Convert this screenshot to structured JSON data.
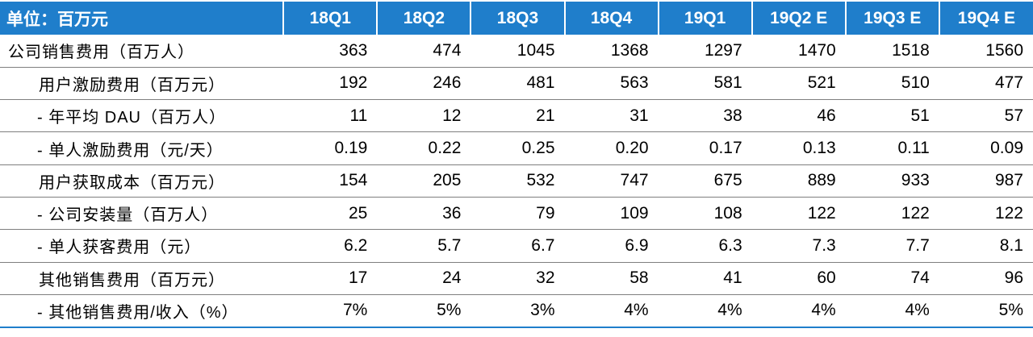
{
  "header": [
    "单位：百万元",
    "18Q1",
    "18Q2",
    "18Q3",
    "18Q4",
    "19Q1",
    "19Q2 E",
    "19Q3 E",
    "19Q4 E"
  ],
  "rows": [
    {
      "label": "公司销售费用（百万人）",
      "level": 0,
      "values": [
        "363",
        "474",
        "1045",
        "1368",
        "1297",
        "1470",
        "1518",
        "1560"
      ]
    },
    {
      "label": "用户激励费用（百万元）",
      "level": 1,
      "values": [
        "192",
        "246",
        "481",
        "563",
        "581",
        "521",
        "510",
        "477"
      ]
    },
    {
      "label": "- 年平均 DAU（百万人）",
      "level": 2,
      "values": [
        "11",
        "12",
        "21",
        "31",
        "38",
        "46",
        "51",
        "57"
      ]
    },
    {
      "label": "- 单人激励费用（元/天）",
      "level": 2,
      "values": [
        "0.19",
        "0.22",
        "0.25",
        "0.20",
        "0.17",
        "0.13",
        "0.11",
        "0.09"
      ]
    },
    {
      "label": "用户获取成本（百万元）",
      "level": 1,
      "values": [
        "154",
        "205",
        "532",
        "747",
        "675",
        "889",
        "933",
        "987"
      ]
    },
    {
      "label": "- 公司安装量（百万人）",
      "level": 2,
      "values": [
        "25",
        "36",
        "79",
        "109",
        "108",
        "122",
        "122",
        "122"
      ]
    },
    {
      "label": "- 单人获客费用（元）",
      "level": 2,
      "values": [
        "6.2",
        "5.7",
        "6.7",
        "6.9",
        "6.3",
        "7.3",
        "7.7",
        "8.1"
      ]
    },
    {
      "label": "其他销售费用（百万元）",
      "level": 1,
      "values": [
        "17",
        "24",
        "32",
        "58",
        "41",
        "60",
        "74",
        "96"
      ]
    },
    {
      "label": "- 其他销售费用/收入（%）",
      "level": 2,
      "values": [
        "7%",
        "5%",
        "3%",
        "4%",
        "4%",
        "4%",
        "4%",
        "5%"
      ]
    }
  ]
}
